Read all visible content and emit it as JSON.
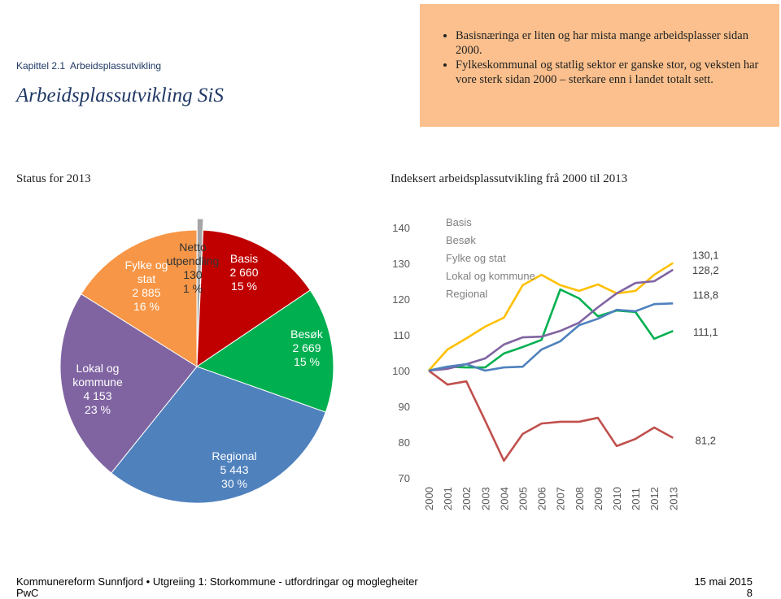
{
  "header": {
    "kicker": "Kapittel 2.1  Arbeidsplassutvikling",
    "title": "Arbeidsplassutvikling SiS",
    "bullets": [
      "Basisnæringa er liten og har mista mange arbeidsplasser sidan 2000.",
      "Fylkeskommunal og statlig sektor er ganske stor, og veksten har vore sterk sidan 2000 – sterkare enn i landet totalt sett."
    ]
  },
  "chart_data": [
    {
      "type": "pie",
      "title": "Status for 2013",
      "categories": [
        "Netto utpendling",
        "Basis",
        "Besøk",
        "Regional",
        "Lokal og kommune",
        "Fylke og stat"
      ],
      "values": [
        130,
        2660,
        2669,
        5443,
        4153,
        2885
      ],
      "value_labels": [
        "130",
        "2 660",
        "2 669",
        "5 443",
        "4 153",
        "2 885"
      ],
      "percents": [
        1,
        15,
        15,
        30,
        23,
        16
      ],
      "percent_labels": [
        "1 %",
        "15 %",
        "15 %",
        "30 %",
        "23 %",
        "16 %"
      ],
      "colors": [
        "#a6a6a6",
        "#c00000",
        "#00b050",
        "#4f81bd",
        "#8064a2",
        "#f79646"
      ]
    },
    {
      "type": "line",
      "title": "Indeksert arbeidsplassutvikling frå 2000 til 2013",
      "x": [
        "2000",
        "2001",
        "2002",
        "2003",
        "2004",
        "2005",
        "2006",
        "2007",
        "2008",
        "2009",
        "2010",
        "2011",
        "2012",
        "2013"
      ],
      "ylim": [
        70,
        140
      ],
      "yticks": [
        70,
        80,
        90,
        100,
        110,
        120,
        130,
        140
      ],
      "grid": false,
      "legend": "top-left",
      "series": [
        {
          "name": "Basis",
          "color": "#c0504d",
          "values": [
            100,
            96.1,
            97,
            86,
            74.8,
            82.3,
            85.2,
            85.7,
            85.7,
            86.8,
            78.9,
            80.9,
            84.1,
            81.2
          ],
          "value_labels": [
            null,
            null,
            null,
            null,
            null,
            null,
            null,
            null,
            null,
            null,
            null,
            null,
            null,
            "81,2"
          ]
        },
        {
          "name": "Besøk",
          "color": "#ffc000",
          "values": [
            100,
            105.9,
            109,
            112.3,
            114.8,
            123.9,
            126.8,
            123.9,
            122.3,
            124.1,
            121.6,
            122.3,
            126.8,
            130.1
          ],
          "value_labels": [
            null,
            null,
            null,
            null,
            null,
            null,
            null,
            null,
            null,
            null,
            null,
            null,
            null,
            "130,1"
          ]
        },
        {
          "name": "Fylke og stat",
          "color": "#00b050",
          "values": [
            100,
            101.1,
            100.9,
            100.9,
            104.8,
            106.6,
            108.6,
            122.7,
            120.2,
            115.2,
            116.8,
            116.4,
            108.9,
            111.1
          ],
          "value_labels": [
            null,
            null,
            null,
            null,
            null,
            null,
            null,
            null,
            null,
            null,
            null,
            null,
            null,
            "111,1"
          ]
        },
        {
          "name": "Lokal og kommune",
          "color": "#8064a2",
          "values": [
            100,
            100.5,
            101.8,
            103.4,
            107.3,
            109.3,
            109.5,
            111.1,
            113.4,
            117.7,
            121.6,
            124.5,
            125,
            128.2
          ],
          "value_labels": [
            null,
            null,
            null,
            null,
            null,
            null,
            null,
            null,
            null,
            null,
            null,
            null,
            null,
            "128,2"
          ]
        },
        {
          "name": "Regional",
          "color": "#4f81bd",
          "values": [
            100,
            101.1,
            101.8,
            100,
            100.9,
            101.1,
            105.9,
            108.2,
            112.7,
            114.5,
            117,
            116.6,
            118.6,
            118.8
          ],
          "value_labels": [
            null,
            null,
            null,
            null,
            null,
            null,
            null,
            null,
            null,
            null,
            null,
            null,
            null,
            "118,8"
          ]
        }
      ]
    }
  ],
  "footer": {
    "left": "Kommunereform Sunnfjord • Utgreiing 1: Storkommune - utfordringar og moglegheiter",
    "brand": "PwC",
    "date": "15 mai 2015",
    "page": "8"
  }
}
